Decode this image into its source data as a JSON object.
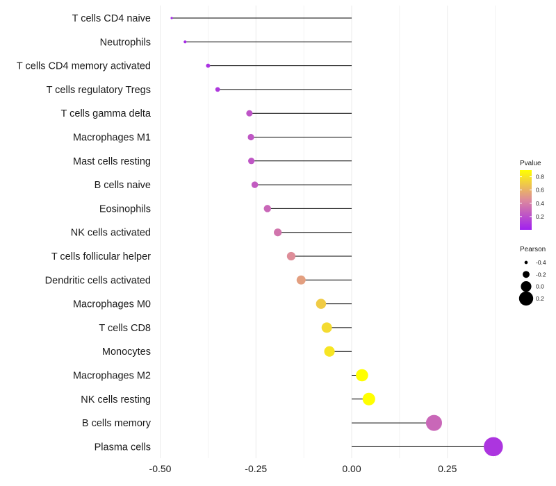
{
  "chart_data": {
    "type": "lollipop",
    "title": "",
    "xlabel": "",
    "ylabel": "",
    "xlim": [
      -0.5,
      0.37
    ],
    "x_ticks": [
      -0.5,
      -0.25,
      0.0,
      0.25
    ],
    "x_tick_labels": [
      "-0.50",
      "-0.25",
      "0.00",
      "0.25"
    ],
    "grid": "vertical",
    "categories": [
      "T cells CD4 naive",
      "Neutrophils",
      "T cells CD4 memory activated",
      "T cells regulatory  Tregs",
      "T cells gamma delta",
      "Macrophages M1",
      "Mast cells resting",
      "B cells naive",
      "Eosinophils",
      "NK cells activated",
      "T cells follicular helper",
      "Dendritic cells activated",
      "Macrophages M0",
      "T cells CD8",
      "Monocytes",
      "Macrophages M2",
      "NK cells resting",
      "B cells memory",
      "Plasma cells"
    ],
    "values": [
      -0.47,
      -0.435,
      -0.375,
      -0.35,
      -0.267,
      -0.263,
      -0.262,
      -0.253,
      -0.22,
      -0.193,
      -0.158,
      -0.132,
      -0.08,
      -0.065,
      -0.058,
      0.027,
      0.045,
      0.215,
      0.37
    ],
    "pvalues": [
      0.04,
      0.05,
      0.08,
      0.1,
      0.22,
      0.23,
      0.23,
      0.25,
      0.3,
      0.36,
      0.46,
      0.53,
      0.7,
      0.76,
      0.8,
      0.97,
      0.93,
      0.3,
      0.09
    ],
    "color_legend": {
      "title": "Pvalue",
      "ticks": [
        0.2,
        0.4,
        0.6,
        0.8
      ],
      "tick_labels": [
        "0.2",
        "0.4",
        "0.6",
        "0.8"
      ],
      "range": [
        0.0,
        0.9
      ],
      "low_color": "#a020f0",
      "mid_color": "#dd8a9c",
      "high_color": "#ffff00"
    },
    "size_legend": {
      "title": "Pearson",
      "values": [
        -0.4,
        -0.2,
        0.0,
        0.2
      ],
      "labels": [
        "-0.4",
        "-0.2",
        "0.0",
        "0.2"
      ]
    },
    "segment_color": "#000000",
    "grid_color": "#ebebeb"
  }
}
